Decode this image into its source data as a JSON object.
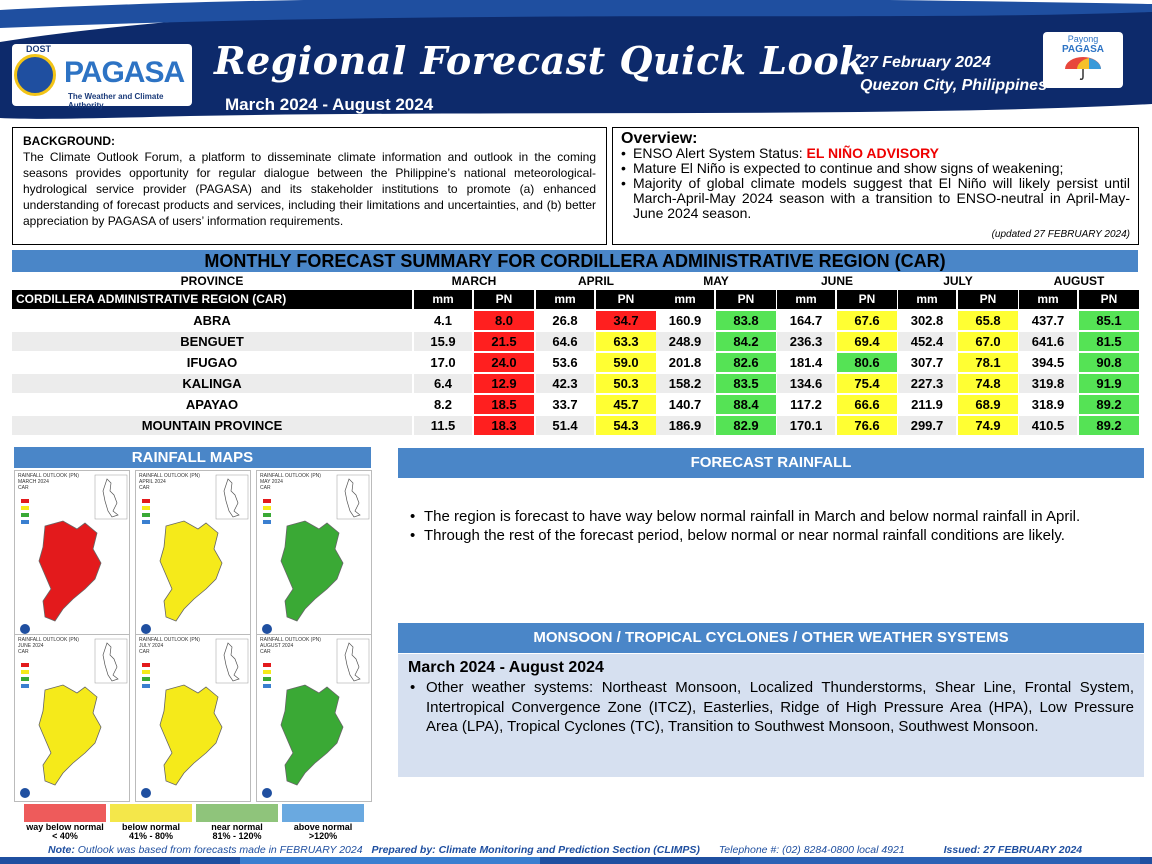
{
  "header": {
    "agency_short": "DOST",
    "agency_name": "PAGASA",
    "agency_tagline": "The Weather and Climate Authority",
    "title": "Regional Forecast Quick Look",
    "period": "March 2024 - August 2024",
    "date": "27 February 2024",
    "place": "Quezon City, Philippines",
    "payong_line1": "Payong",
    "payong_line2": "PAGASA"
  },
  "background": {
    "title": "BACKGROUND:",
    "text": "The Climate Outlook Forum, a platform to disseminate climate information and outlook in the coming seasons provides opportunity for regular dialogue between the Philippine’s national meteorological-hydrological service provider (PAGASA) and its stakeholder institutions to promote (a) enhanced understanding of forecast products and services, including their limitations and uncertainties, and (b) better appreciation by PAGASA of users’ information requirements."
  },
  "overview": {
    "title": "Overview:",
    "enso_label": "ENSO Alert System Status: ",
    "enso_status": "EL NIÑO ADVISORY",
    "item2": "Mature El Niño is expected to continue and show signs of weakening;",
    "item3": "Majority of global climate models suggest that El Niño will likely persist until March-April-May 2024 season with a transition to ENSO-neutral in April-May-June 2024 season.",
    "updated": "(updated 27 FEBRUARY 2024)"
  },
  "table": {
    "title": "MONTHLY FORECAST SUMMARY FOR CORDILLERA ADMINISTRATIVE REGION (CAR)",
    "province_header": "PROVINCE",
    "region_label": "CORDILLERA ADMINISTRATIVE REGION (CAR)",
    "mm_label": "mm",
    "pn_label": "PN",
    "months": [
      "MARCH",
      "APRIL",
      "MAY",
      "JUNE",
      "JULY",
      "AUGUST"
    ],
    "rows": [
      {
        "province": "ABRA",
        "values": [
          [
            "4.1",
            "8.0"
          ],
          [
            "26.8",
            "34.7"
          ],
          [
            "160.9",
            "83.8"
          ],
          [
            "164.7",
            "67.6"
          ],
          [
            "302.8",
            "65.8"
          ],
          [
            "437.7",
            "85.1"
          ]
        ]
      },
      {
        "province": "BENGUET",
        "values": [
          [
            "15.9",
            "21.5"
          ],
          [
            "64.6",
            "63.3"
          ],
          [
            "248.9",
            "84.2"
          ],
          [
            "236.3",
            "69.4"
          ],
          [
            "452.4",
            "67.0"
          ],
          [
            "641.6",
            "81.5"
          ]
        ]
      },
      {
        "province": "IFUGAO",
        "values": [
          [
            "17.0",
            "24.0"
          ],
          [
            "53.6",
            "59.0"
          ],
          [
            "201.8",
            "82.6"
          ],
          [
            "181.4",
            "80.6"
          ],
          [
            "307.7",
            "78.1"
          ],
          [
            "394.5",
            "90.8"
          ]
        ]
      },
      {
        "province": "KALINGA",
        "values": [
          [
            "6.4",
            "12.9"
          ],
          [
            "42.3",
            "50.3"
          ],
          [
            "158.2",
            "83.5"
          ],
          [
            "134.6",
            "75.4"
          ],
          [
            "227.3",
            "74.8"
          ],
          [
            "319.8",
            "91.9"
          ]
        ]
      },
      {
        "province": "APAYAO",
        "values": [
          [
            "8.2",
            "18.5"
          ],
          [
            "33.7",
            "45.7"
          ],
          [
            "140.7",
            "88.4"
          ],
          [
            "117.2",
            "66.6"
          ],
          [
            "211.9",
            "68.9"
          ],
          [
            "318.9",
            "89.2"
          ]
        ]
      },
      {
        "province": "MOUNTAIN PROVINCE",
        "values": [
          [
            "11.5",
            "18.3"
          ],
          [
            "51.4",
            "54.3"
          ],
          [
            "186.9",
            "82.9"
          ],
          [
            "170.1",
            "76.6"
          ],
          [
            "299.7",
            "74.9"
          ],
          [
            "410.5",
            "89.2"
          ]
        ]
      }
    ]
  },
  "rainfall_maps": {
    "title": "RAINFALL MAPS",
    "maps": [
      {
        "label_lines": [
          "RAINFALL OUTLOOK (PN)",
          "MARCH 2024",
          "CAR"
        ],
        "fill": "#e31a1c"
      },
      {
        "label_lines": [
          "RAINFALL OUTLOOK (PN)",
          "APRIL 2024",
          "CAR"
        ],
        "fill": "#f5ea1a"
      },
      {
        "label_lines": [
          "RAINFALL OUTLOOK (PN)",
          "MAY 2024",
          "CAR"
        ],
        "fill": "#3aa935"
      },
      {
        "label_lines": [
          "RAINFALL OUTLOOK (PN)",
          "JUNE 2024",
          "CAR"
        ],
        "fill": "#f5ea1a"
      },
      {
        "label_lines": [
          "RAINFALL OUTLOOK (PN)",
          "JULY 2024",
          "CAR"
        ],
        "fill": "#f5ea1a"
      },
      {
        "label_lines": [
          "RAINFALL OUTLOOK (PN)",
          "AUGUST 2024",
          "CAR"
        ],
        "fill": "#3aa935"
      }
    ],
    "legend": [
      {
        "label": "way below normal",
        "range": "< 40%",
        "color": "#ee5b5b"
      },
      {
        "label": "below normal",
        "range": "41%  -  80%",
        "color": "#f4e74a"
      },
      {
        "label": "near normal",
        "range": "81% - 120%",
        "color": "#8fc47b"
      },
      {
        "label": "above normal",
        "range": ">120%",
        "color": "#6aa9e0"
      }
    ]
  },
  "forecast_rainfall": {
    "title": "FORECAST RAINFALL",
    "items": [
      "The region is forecast to have way below normal rainfall in March and below normal rainfall in April.",
      "Through the rest of the forecast period, below normal or near normal rainfall conditions are likely."
    ]
  },
  "monsoon": {
    "title": "MONSOON  / TROPICAL CYCLONES / OTHER WEATHER SYSTEMS",
    "period": "March 2024 - August 2024",
    "item": "Other weather systems: Northeast Monsoon, Localized Thunderstorms, Shear Line, Frontal System, Intertropical Convergence Zone (ITCZ), Easterlies, Ridge of High Pressure Area (HPA), Low Pressure Area (LPA), Tropical Cyclones (TC), Transition to Southwest Monsoon, Southwest Monsoon."
  },
  "footer": {
    "note_label": "Note:",
    "note": " Outlook was based from forecasts made in FEBRUARY 2024",
    "prepared": "Prepared by: Climate Monitoring and Prediction Section (CLIMPS)",
    "phone": "Telephone #: (02) 8284-0800 local 4921",
    "issued": "Issued: 27 FEBRUARY 2024"
  },
  "colors": {
    "navy": "#0d2a6b",
    "header_blue": "#4a86c8",
    "pn_red": "#ff1f1f",
    "pn_yellow": "#ffff33",
    "pn_green": "#55e355",
    "row_alt": "#ececec"
  }
}
